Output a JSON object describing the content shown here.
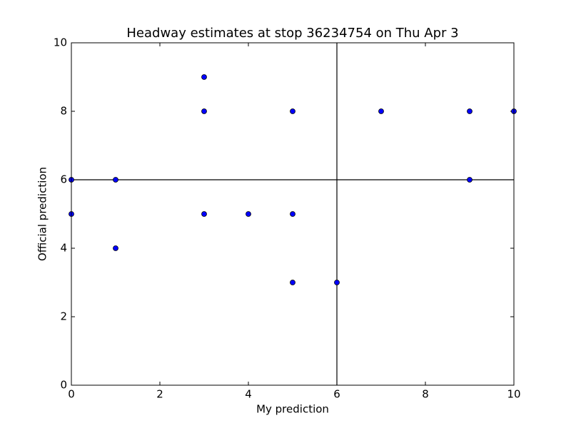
{
  "chart_data": {
    "type": "scatter",
    "title": "Headway estimates at stop 36234754 on Thu Apr 3",
    "x_label": "My prediction",
    "y_label": "Official prediction",
    "x": [
      0,
      0,
      1,
      1,
      3,
      3,
      3,
      4,
      5,
      5,
      5,
      6,
      7,
      9,
      9,
      10
    ],
    "values": [
      6,
      5,
      6,
      4,
      9,
      8,
      5,
      5,
      8,
      5,
      3,
      3,
      8,
      8,
      6,
      8
    ],
    "color": "#0000ff",
    "xlim": [
      0,
      10
    ],
    "ylim": [
      0,
      10
    ],
    "xticks": [
      0,
      2,
      4,
      6,
      8,
      10
    ],
    "yticks": [
      0,
      2,
      4,
      6,
      8,
      10
    ],
    "vline": 6,
    "hline": 6,
    "grid": false
  }
}
